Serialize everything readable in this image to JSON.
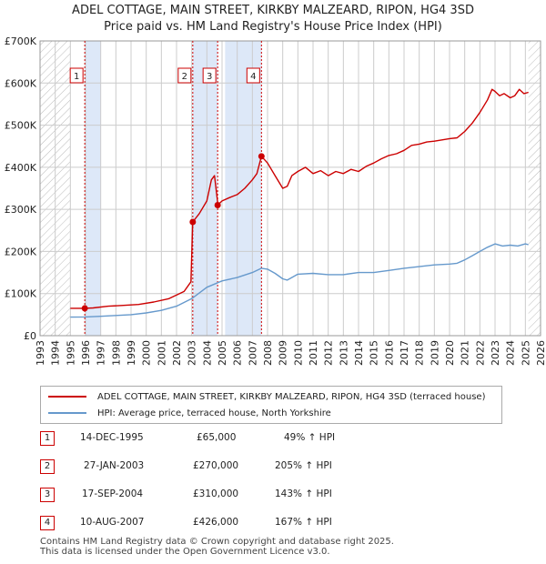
{
  "title": "ADEL COTTAGE, MAIN STREET, KIRKBY MALZEARD, RIPON, HG4 3SD",
  "subtitle": "Price paid vs. HM Land Registry's House Price Index (HPI)",
  "colors": {
    "property": "#cc0000",
    "hpi": "#6699cc",
    "shade": "#dde8f8",
    "grid": "#cccccc"
  },
  "chart_data": {
    "type": "line",
    "title": "ADEL COTTAGE, MAIN STREET, KIRKBY MALZEARD, RIPON, HG4 3SD",
    "subtitle": "Price paid vs. HM Land Registry's House Price Index (HPI)",
    "xlim": [
      1993,
      2026
    ],
    "ylim": [
      0,
      700000
    ],
    "y_ticks": [
      0,
      100000,
      200000,
      300000,
      400000,
      500000,
      600000,
      700000
    ],
    "y_tick_labels": [
      "£0",
      "£100K",
      "£200K",
      "£300K",
      "£400K",
      "£500K",
      "£600K",
      "£700K"
    ],
    "x_ticks": [
      1993,
      1994,
      1995,
      1996,
      1997,
      1998,
      1999,
      2000,
      2001,
      2002,
      2003,
      2004,
      2005,
      2006,
      2007,
      2008,
      2009,
      2010,
      2011,
      2012,
      2013,
      2014,
      2015,
      2016,
      2017,
      2018,
      2019,
      2020,
      2021,
      2022,
      2023,
      2024,
      2025,
      2026
    ],
    "hatched_before": 1995,
    "hatched_after": 2025.2,
    "shaded_ranges": [
      [
        1995.95,
        1997
      ],
      [
        2003.07,
        2004.71
      ],
      [
        2005.2,
        2007.6
      ]
    ],
    "series": [
      {
        "name": "ADEL COTTAGE, MAIN STREET, KIRKBY MALZEARD, RIPON, HG4 3SD (terraced house)",
        "x": [
          1995,
          1995.95,
          1996.5,
          1997.5,
          1998.5,
          1999.5,
          2000.5,
          2001.5,
          2002.5,
          2002.95,
          2003.07,
          2003.5,
          2004,
          2004.3,
          2004.5,
          2004.7,
          2004.71,
          2005,
          2005.5,
          2006,
          2006.5,
          2007,
          2007.3,
          2007.6,
          2008,
          2008.5,
          2009,
          2009.3,
          2009.6,
          2010,
          2010.5,
          2011,
          2011.5,
          2012,
          2012.5,
          2013,
          2013.5,
          2014,
          2014.5,
          2015,
          2015.5,
          2016,
          2016.5,
          2017,
          2017.5,
          2018,
          2018.5,
          2019,
          2019.5,
          2020,
          2020.5,
          2021,
          2021.5,
          2022,
          2022.5,
          2022.8,
          2023,
          2023.3,
          2023.6,
          2024,
          2024.3,
          2024.6,
          2024.9,
          2025.2
        ],
        "values": [
          65000,
          65000,
          66000,
          70000,
          72000,
          74000,
          80000,
          88000,
          105000,
          128000,
          270000,
          290000,
          320000,
          370000,
          380000,
          320000,
          310000,
          320000,
          328000,
          335000,
          350000,
          370000,
          385000,
          426000,
          410000,
          380000,
          350000,
          355000,
          380000,
          390000,
          400000,
          385000,
          392000,
          380000,
          390000,
          385000,
          395000,
          390000,
          402000,
          410000,
          420000,
          428000,
          432000,
          440000,
          452000,
          455000,
          460000,
          462000,
          465000,
          468000,
          470000,
          485000,
          505000,
          530000,
          560000,
          585000,
          580000,
          570000,
          575000,
          565000,
          570000,
          585000,
          575000,
          578000
        ]
      },
      {
        "name": "HPI: Average price, terraced house, North Yorkshire",
        "x": [
          1995,
          1996,
          1997,
          1998,
          1999,
          2000,
          2001,
          2002,
          2003,
          2004,
          2005,
          2006,
          2007,
          2007.6,
          2008,
          2008.5,
          2009,
          2009.3,
          2010,
          2011,
          2012,
          2013,
          2014,
          2015,
          2016,
          2017,
          2018,
          2019,
          2020,
          2020.5,
          2021,
          2021.5,
          2022,
          2022.5,
          2023,
          2023.5,
          2024,
          2024.5,
          2025,
          2025.2
        ],
        "values": [
          44000,
          44500,
          46000,
          48000,
          50000,
          54000,
          60000,
          70000,
          88000,
          115000,
          130000,
          138000,
          150000,
          160000,
          158000,
          148000,
          135000,
          132000,
          146000,
          148000,
          145000,
          145000,
          150000,
          150000,
          155000,
          160000,
          164000,
          168000,
          170000,
          172000,
          180000,
          190000,
          200000,
          210000,
          218000,
          213000,
          215000,
          213000,
          218000,
          216000
        ]
      }
    ],
    "sales": [
      {
        "label": "1",
        "year": 1995.95,
        "price": 65000
      },
      {
        "label": "2",
        "year": 2003.07,
        "price": 270000
      },
      {
        "label": "3",
        "year": 2004.71,
        "price": 310000
      },
      {
        "label": "4",
        "year": 2007.6,
        "price": 426000
      }
    ],
    "legend_position": "bottom"
  },
  "legend": {
    "property": "ADEL COTTAGE, MAIN STREET, KIRKBY MALZEARD, RIPON, HG4 3SD (terraced house)",
    "hpi": "HPI: Average price, terraced house, North Yorkshire"
  },
  "sales_table": [
    {
      "num": "1",
      "date": "14-DEC-1995",
      "price": "£65,000",
      "hpi": "49% ↑ HPI"
    },
    {
      "num": "2",
      "date": "27-JAN-2003",
      "price": "£270,000",
      "hpi": "205% ↑ HPI"
    },
    {
      "num": "3",
      "date": "17-SEP-2004",
      "price": "£310,000",
      "hpi": "143% ↑ HPI"
    },
    {
      "num": "4",
      "date": "10-AUG-2007",
      "price": "£426,000",
      "hpi": "167% ↑ HPI"
    }
  ],
  "footer": {
    "line1": "Contains HM Land Registry data © Crown copyright and database right 2025.",
    "line2": "This data is licensed under the Open Government Licence v3.0."
  }
}
